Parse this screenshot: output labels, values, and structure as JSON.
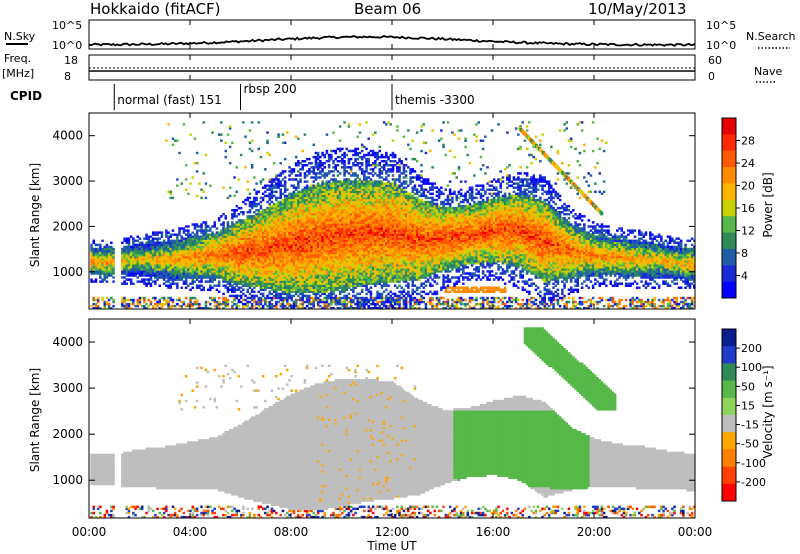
{
  "header": {
    "station": "Hokkaido (fitACF)",
    "beam": "Beam 06",
    "date": "10/May/2013"
  },
  "noise_panel": {
    "left_label": "N.Sky",
    "right_label": "N.Search",
    "left_ticks": [
      "10^5",
      "10^0"
    ],
    "right_ticks": [
      "10^5",
      "10^0"
    ]
  },
  "freq_panel": {
    "left_label_1": "Freq.",
    "left_label_2": "[MHz]",
    "right_label": "Nave",
    "left_ticks": [
      "18",
      "8"
    ],
    "right_ticks": [
      "60",
      "0"
    ]
  },
  "cpid": {
    "label": "CPID",
    "segments": [
      {
        "start": 1.0,
        "text": "normal (fast) 151"
      },
      {
        "start": 6.0,
        "text": "rbsp 200"
      },
      {
        "start": 12.0,
        "text": "themis -3300"
      }
    ]
  },
  "power_panel": {
    "ylabel": "Slant Range [km]",
    "cbar_label": "Power [dB]",
    "cbar_ticks": [
      "28",
      "24",
      "20",
      "16",
      "12",
      "8",
      "4"
    ],
    "cbar_colors": [
      "#e60000",
      "#ff2a00",
      "#ff5a00",
      "#ff8c00",
      "#ffb400",
      "#c8d200",
      "#56b848",
      "#2e8b57",
      "#1e5fa8",
      "#1a2bd6",
      "#0000ff"
    ]
  },
  "velocity_panel": {
    "ylabel": "Slant Range [km]",
    "cbar_label": "Velocity [m s⁻¹]",
    "cbar_ticks": [
      "200",
      "100",
      "50",
      "15",
      "-15",
      "-50",
      "-100",
      "-200"
    ],
    "cbar_colors": [
      "#0a1e8c",
      "#1e3cc8",
      "#2e8b57",
      "#56b848",
      "#8fd35c",
      "#bebebe",
      "#ffa500",
      "#ff7f00",
      "#ff4000",
      "#ff0000"
    ]
  },
  "y_ticks": [
    "4000",
    "3000",
    "2000",
    "1000"
  ],
  "x_ticks": [
    "00:00",
    "04:00",
    "08:00",
    "12:00",
    "16:00",
    "20:00",
    "00:00"
  ],
  "xlabel": "Time UT",
  "chart_data": [
    {
      "type": "heatmap",
      "title": "Power [dB]",
      "xlabel": "Time UT",
      "ylabel": "Slant Range [km]",
      "xlim": [
        0,
        24
      ],
      "ylim": [
        180,
        4500
      ],
      "color_range": [
        0,
        30
      ],
      "bands": [
        {
          "name": "main",
          "x": [
            0,
            1,
            2,
            3,
            4,
            5,
            6,
            7,
            8,
            9,
            10,
            11,
            12,
            13,
            14,
            15,
            16,
            17,
            18,
            19,
            20,
            21,
            22,
            23,
            24
          ],
          "center_km": [
            1200,
            1200,
            1250,
            1250,
            1300,
            1350,
            1400,
            1500,
            1600,
            1700,
            1800,
            1850,
            1850,
            1700,
            1700,
            1800,
            1900,
            1900,
            1650,
            1450,
            1350,
            1300,
            1250,
            1200,
            1150
          ],
          "width_km": [
            300,
            300,
            350,
            400,
            450,
            500,
            700,
            900,
            1100,
            1200,
            1200,
            1150,
            1100,
            900,
            700,
            650,
            700,
            800,
            900,
            600,
            450,
            400,
            400,
            350,
            350
          ],
          "peak_db": [
            24,
            22,
            20,
            22,
            24,
            26,
            28,
            28,
            28,
            28,
            28,
            28,
            28,
            28,
            28,
            28,
            28,
            28,
            28,
            26,
            24,
            24,
            22,
            22,
            22
          ]
        }
      ]
    },
    {
      "type": "heatmap",
      "title": "Velocity [m s⁻¹]",
      "xlabel": "Time UT",
      "ylabel": "Slant Range [km]",
      "xlim": [
        0,
        24
      ],
      "ylim": [
        180,
        4500
      ],
      "color_range": [
        -200,
        200
      ],
      "regions": [
        {
          "x": [
            0,
            14.5
          ],
          "range_km": [
            800,
            2500
          ],
          "velocity": 0
        },
        {
          "x": [
            14.5,
            19.5
          ],
          "range_km": [
            1000,
            2500
          ],
          "velocity": 60
        },
        {
          "x": [
            17.5,
            20.5
          ],
          "range_km": [
            2500,
            4300
          ],
          "velocity": 60
        },
        {
          "x": [
            19.5,
            24
          ],
          "range_km": [
            800,
            1900
          ],
          "velocity": 0
        }
      ]
    }
  ]
}
